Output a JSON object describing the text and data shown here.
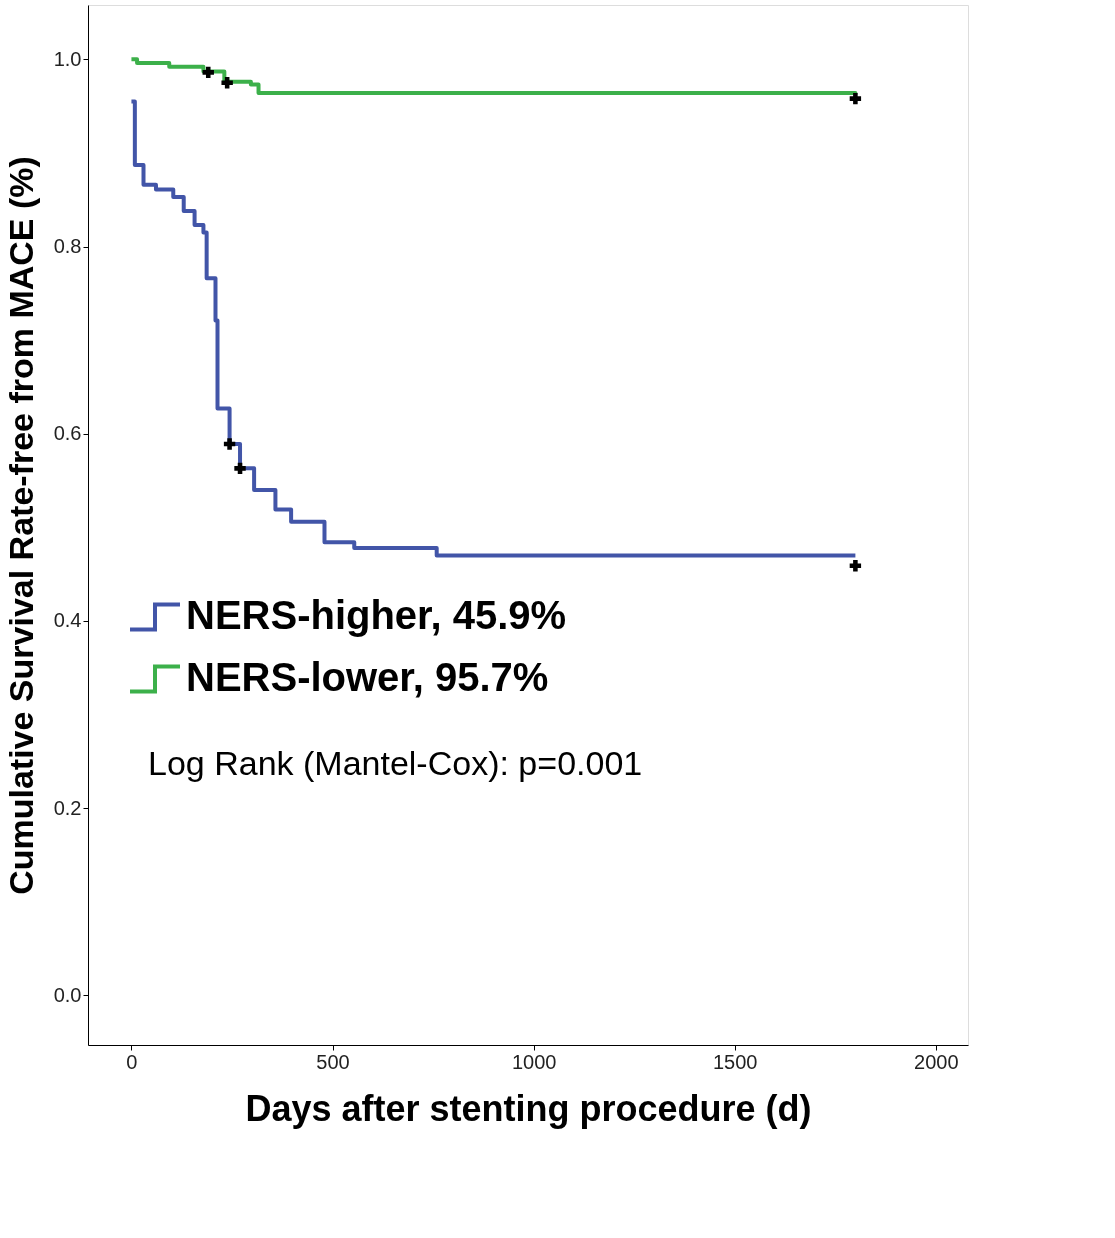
{
  "chart_data": {
    "type": "step",
    "xlabel": "Days after stenting procedure (d)",
    "ylabel": "Cumulative Survival Rate-free from MACE (%)",
    "xlim": [
      -108,
      2080
    ],
    "xticks": [
      0,
      500,
      1000,
      1500,
      2000
    ],
    "ylim": [
      -0.053,
      1.058
    ],
    "yticks": [
      {
        "value": 0,
        "label": "0.0"
      },
      0.2,
      0.4,
      0.6,
      0.8,
      {
        "value": 1,
        "label": "1.0"
      }
    ],
    "grid": false,
    "legend": "left",
    "line_style": "solid",
    "series": [
      {
        "name": "NERS-higher, 45.9%",
        "color": "#4255a8",
        "x": [
          0,
          8.5,
          30,
          61,
          104,
          130,
          157,
          179,
          187,
          209,
          214,
          244,
          270,
          305,
          358,
          397,
          480,
          554,
          759,
          1800
        ],
        "values": [
          0.955,
          0.887,
          0.866,
          0.861,
          0.853,
          0.838,
          0.823,
          0.815,
          0.766,
          0.721,
          0.627,
          0.589,
          0.563,
          0.54,
          0.519,
          0.506,
          0.484,
          0.478,
          0.47,
          0.47
        ]
      },
      {
        "name": "NERS-lower, 95.7%",
        "color": "#3cb04a",
        "x": [
          0,
          14,
          94,
          179,
          231,
          297,
          316,
          1800
        ],
        "values": [
          1.0,
          0.996,
          0.992,
          0.987,
          0.976,
          0.973,
          0.964,
          0.962
        ]
      },
      {
        "type": "scatter",
        "marker": "cross",
        "color": "#000000",
        "x": [
          244,
          270,
          1800,
          191,
          238,
          1800
        ],
        "values": [
          0.589,
          0.563,
          0.459,
          0.986,
          0.975,
          0.958
        ]
      }
    ],
    "annotations": [
      "Log Rank (Mantel-Cox): p=0.001"
    ]
  }
}
